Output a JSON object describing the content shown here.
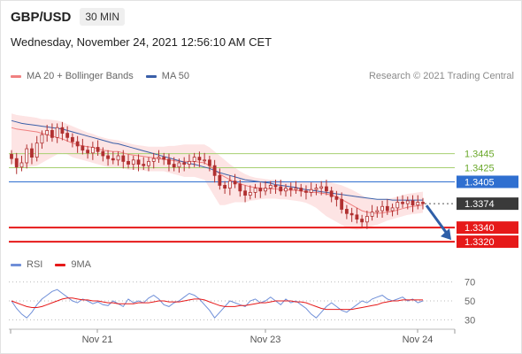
{
  "header": {
    "symbol": "GBP/USD",
    "timeframe": "30 MIN",
    "datetime": "Wednesday, November 24, 2021 12:56:10 AM CET"
  },
  "legend": {
    "ma20_label": "MA 20 + Bollinger Bands",
    "ma50_label": "MA 50",
    "credit": "Research © 2021 Trading Central"
  },
  "rsi_legend": {
    "rsi_label": "RSI",
    "ma9_label": "9MA"
  },
  "colors": {
    "ma20": "#f08080",
    "ma50": "#3a5fa8",
    "band_fill": "#fde4e4",
    "candle": "#b03030",
    "resistance": "#a6cf70",
    "pivot": "#2f6fd0",
    "support": "#e61919",
    "price_badge": "#3a3a3a",
    "arrow": "#2f5fa8",
    "rsi": "#6f8fd8",
    "rsi_ma": "#e61919"
  },
  "chart_data": [
    {
      "type": "candlestick",
      "title": "GBP/USD 30 MIN",
      "x_ticks": [
        "Nov 21",
        "Nov 23",
        "Nov 24"
      ],
      "ylim": [
        1.3305,
        1.3525
      ],
      "current_price": 1.3374,
      "levels": [
        {
          "label": "1.3445",
          "value": 1.3445,
          "kind": "resistance"
        },
        {
          "label": "1.3425",
          "value": 1.3425,
          "kind": "resistance"
        },
        {
          "label": "1.3405",
          "value": 1.3405,
          "kind": "pivot"
        },
        {
          "label": "1.3374",
          "value": 1.3374,
          "kind": "current"
        },
        {
          "label": "1.3340",
          "value": 1.334,
          "kind": "support"
        },
        {
          "label": "1.3320",
          "value": 1.332,
          "kind": "support"
        }
      ],
      "close_series": [
        1.3438,
        1.3426,
        1.3432,
        1.3452,
        1.344,
        1.346,
        1.3472,
        1.3478,
        1.3468,
        1.3482,
        1.3474,
        1.3468,
        1.3462,
        1.3456,
        1.345,
        1.3446,
        1.3454,
        1.3448,
        1.3442,
        1.3438,
        1.3436,
        1.3442,
        1.3434,
        1.343,
        1.3436,
        1.343,
        1.3428,
        1.3434,
        1.3438,
        1.344,
        1.3437,
        1.343,
        1.3426,
        1.3432,
        1.343,
        1.3434,
        1.344,
        1.3436,
        1.3436,
        1.3428,
        1.3414,
        1.34,
        1.3396,
        1.3406,
        1.3402,
        1.3392,
        1.3386,
        1.339,
        1.3396,
        1.3392,
        1.3396,
        1.34,
        1.3398,
        1.3392,
        1.3396,
        1.3394,
        1.3396,
        1.3392,
        1.339,
        1.3394,
        1.3396,
        1.3398,
        1.3392,
        1.3384,
        1.338,
        1.3366,
        1.336,
        1.3358,
        1.3352,
        1.3348,
        1.3356,
        1.3362,
        1.3364,
        1.337,
        1.3364,
        1.3368,
        1.3376,
        1.3374,
        1.3378,
        1.3372,
        1.3376,
        1.3374
      ],
      "ma20_series": [
        1.3482,
        1.348,
        1.3479,
        1.3478,
        1.3477,
        1.3476,
        1.3474,
        1.3472,
        1.347,
        1.3468,
        1.3466,
        1.3463,
        1.346,
        1.3458,
        1.3456,
        1.3455,
        1.3454,
        1.3452,
        1.345,
        1.3449,
        1.3448,
        1.3448,
        1.3446,
        1.3444,
        1.3443,
        1.3442,
        1.3441,
        1.344,
        1.3439,
        1.3438,
        1.3437,
        1.3436,
        1.3435,
        1.3434,
        1.3434,
        1.3434,
        1.3434,
        1.3433,
        1.3432,
        1.3428,
        1.3422,
        1.3416,
        1.3412,
        1.3408,
        1.3405,
        1.3402,
        1.34,
        1.3398,
        1.3397,
        1.3396,
        1.3395,
        1.3395,
        1.3395,
        1.3394,
        1.3394,
        1.3393,
        1.3393,
        1.3392,
        1.3391,
        1.339,
        1.339,
        1.3389,
        1.3388,
        1.3386,
        1.3384,
        1.338,
        1.3376,
        1.3372,
        1.3368,
        1.3364,
        1.3362,
        1.3361,
        1.336,
        1.3361,
        1.3362,
        1.3363,
        1.3365,
        1.3367,
        1.3369,
        1.337,
        1.3371,
        1.3372
      ],
      "ma50_series": [
        1.3492,
        1.349,
        1.3488,
        1.3487,
        1.3486,
        1.3485,
        1.3484,
        1.3483,
        1.3482,
        1.3481,
        1.348,
        1.3478,
        1.3476,
        1.3474,
        1.3472,
        1.347,
        1.3468,
        1.3466,
        1.3464,
        1.3462,
        1.346,
        1.3459,
        1.3457,
        1.3455,
        1.3453,
        1.3451,
        1.3449,
        1.3447,
        1.3445,
        1.3443,
        1.3441,
        1.3439,
        1.3437,
        1.3435,
        1.3433,
        1.3431,
        1.343,
        1.3428,
        1.3426,
        1.3424,
        1.3421,
        1.3418,
        1.3416,
        1.3414,
        1.3412,
        1.341,
        1.3408,
        1.3407,
        1.3406,
        1.3405,
        1.3404,
        1.3403,
        1.3401,
        1.34,
        1.3399,
        1.3398,
        1.3397,
        1.3395,
        1.3394,
        1.3393,
        1.3392,
        1.3391,
        1.339,
        1.3389,
        1.3388,
        1.3387,
        1.3386,
        1.3385,
        1.3384,
        1.3383,
        1.3382,
        1.3381,
        1.338,
        1.338,
        1.338,
        1.3379,
        1.3379,
        1.3379,
        1.3379,
        1.3379,
        1.3379,
        1.3379
      ],
      "band_upper": [
        1.3502,
        1.35,
        1.3499,
        1.3498,
        1.3497,
        1.3496,
        1.3494,
        1.3494,
        1.3493,
        1.3492,
        1.349,
        1.3487,
        1.3484,
        1.3481,
        1.3478,
        1.3475,
        1.3473,
        1.347,
        1.3468,
        1.3466,
        1.3465,
        1.3464,
        1.3462,
        1.346,
        1.3458,
        1.3457,
        1.3456,
        1.3455,
        1.3455,
        1.3455,
        1.3455,
        1.3456,
        1.3456,
        1.3457,
        1.3458,
        1.3458,
        1.3458,
        1.3458,
        1.3458,
        1.3454,
        1.3448,
        1.3442,
        1.3436,
        1.343,
        1.3425,
        1.342,
        1.3416,
        1.3413,
        1.3411,
        1.341,
        1.3409,
        1.3408,
        1.3408,
        1.3407,
        1.3406,
        1.3406,
        1.3406,
        1.3406,
        1.3406,
        1.3406,
        1.3406,
        1.3406,
        1.3406,
        1.3404,
        1.3402,
        1.34,
        1.3397,
        1.3394,
        1.339,
        1.3386,
        1.3382,
        1.338,
        1.3379,
        1.338,
        1.3381,
        1.3382,
        1.3384,
        1.3386,
        1.3388,
        1.3389,
        1.339,
        1.3391
      ],
      "band_lower": [
        1.3432,
        1.3428,
        1.3426,
        1.3426,
        1.3427,
        1.3428,
        1.3432,
        1.3436,
        1.344,
        1.3444,
        1.3446,
        1.3444,
        1.344,
        1.3438,
        1.3436,
        1.3434,
        1.3432,
        1.343,
        1.3428,
        1.3426,
        1.3426,
        1.3426,
        1.3424,
        1.3422,
        1.3422,
        1.3422,
        1.3421,
        1.342,
        1.342,
        1.342,
        1.342,
        1.3418,
        1.3416,
        1.3414,
        1.3412,
        1.3412,
        1.3412,
        1.341,
        1.3408,
        1.3396,
        1.3384,
        1.3372,
        1.3372,
        1.3374,
        1.3376,
        1.3376,
        1.3376,
        1.3378,
        1.3379,
        1.338,
        1.3381,
        1.3381,
        1.3381,
        1.338,
        1.338,
        1.3379,
        1.3378,
        1.3377,
        1.3375,
        1.3372,
        1.3368,
        1.3362,
        1.3356,
        1.3352,
        1.3348,
        1.3344,
        1.334,
        1.3338,
        1.3337,
        1.3338,
        1.334,
        1.3342,
        1.3344,
        1.3347,
        1.335,
        1.3352,
        1.3354,
        1.3356,
        1.3358,
        1.3359,
        1.336,
        1.3361
      ]
    },
    {
      "type": "line",
      "title": "RSI",
      "y_ticks": [
        70,
        50,
        30
      ],
      "ylim": [
        20,
        80
      ],
      "series": [
        {
          "name": "RSI",
          "values": [
            50,
            42,
            36,
            32,
            38,
            46,
            52,
            56,
            60,
            62,
            58,
            54,
            50,
            48,
            52,
            50,
            47,
            49,
            46,
            45,
            50,
            47,
            44,
            52,
            48,
            50,
            48,
            53,
            56,
            52,
            46,
            44,
            48,
            50,
            54,
            58,
            56,
            52,
            46,
            40,
            32,
            38,
            44,
            50,
            48,
            46,
            44,
            50,
            52,
            48,
            50,
            54,
            50,
            46,
            52,
            48,
            50,
            46,
            42,
            36,
            32,
            38,
            44,
            48,
            44,
            40,
            38,
            42,
            46,
            50,
            48,
            52,
            54,
            56,
            52,
            50,
            52,
            54,
            50,
            52,
            48,
            50
          ]
        },
        {
          "name": "9MA",
          "values": [
            50,
            48,
            46,
            44,
            43,
            43,
            44,
            46,
            48,
            50,
            52,
            53,
            53,
            52,
            51,
            51,
            50,
            50,
            49,
            48,
            48,
            47,
            47,
            47,
            47,
            48,
            48,
            48,
            49,
            50,
            50,
            49,
            49,
            49,
            50,
            51,
            52,
            52,
            51,
            49,
            47,
            45,
            44,
            44,
            44,
            45,
            45,
            46,
            47,
            48,
            48,
            49,
            50,
            50,
            50,
            50,
            49,
            49,
            48,
            46,
            44,
            42,
            41,
            41,
            41,
            41,
            41,
            41,
            42,
            43,
            44,
            45,
            46,
            48,
            49,
            50,
            50,
            51,
            51,
            51,
            51,
            51
          ]
        }
      ]
    }
  ]
}
